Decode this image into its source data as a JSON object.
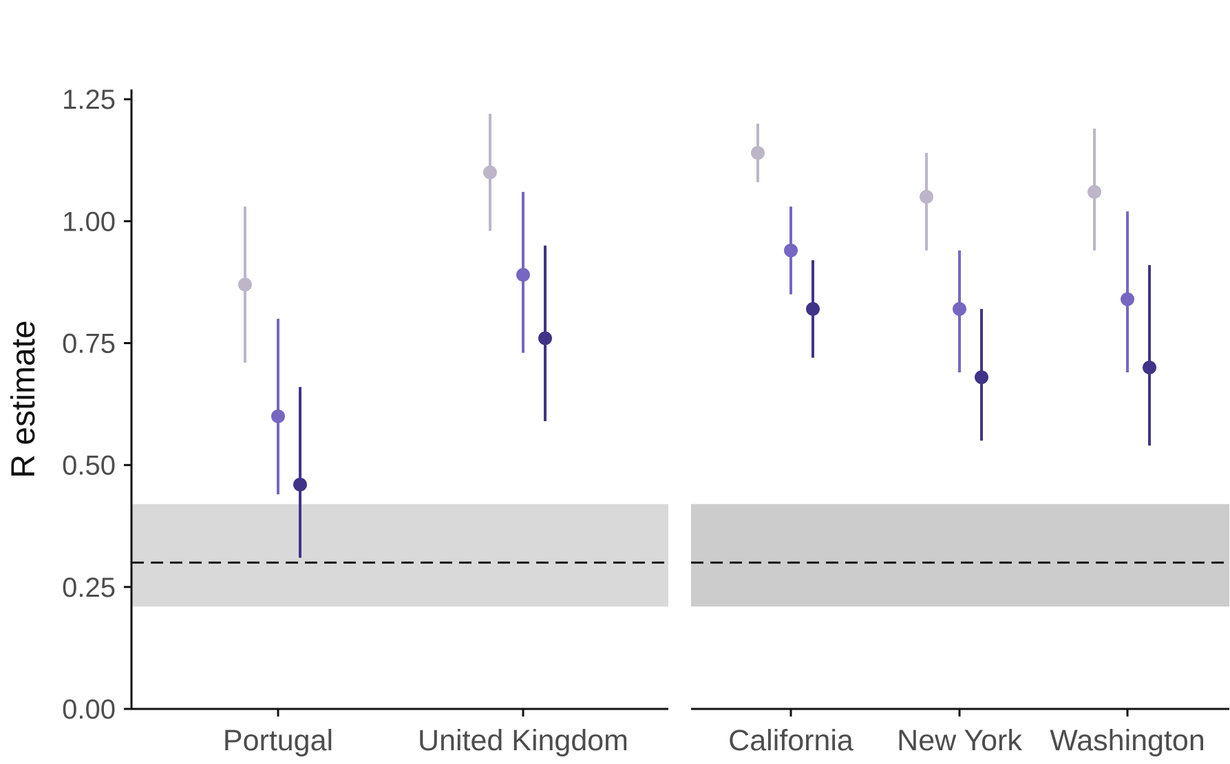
{
  "chart_data": {
    "type": "scatter",
    "ylabel": "R estimate",
    "ylim": [
      0,
      1.27
    ],
    "yticks": [
      "0.00",
      "0.25",
      "0.50",
      "0.75",
      "1.00",
      "1.25"
    ],
    "grid": false,
    "reference": {
      "value": 0.3,
      "band": [
        0.21,
        0.42
      ],
      "style": "dashed"
    },
    "series_colors": [
      "#bdb5c8",
      "#7766c2",
      "#3f3487"
    ],
    "panels": [
      {
        "band_color": "#d9d9d9",
        "categories": [
          {
            "label": "Portugal",
            "points": [
              {
                "y": 0.87,
                "lo": 0.71,
                "hi": 1.03
              },
              {
                "y": 0.6,
                "lo": 0.44,
                "hi": 0.8
              },
              {
                "y": 0.46,
                "lo": 0.31,
                "hi": 0.66
              }
            ]
          },
          {
            "label": "United Kingdom",
            "points": [
              {
                "y": 1.1,
                "lo": 0.98,
                "hi": 1.22
              },
              {
                "y": 0.89,
                "lo": 0.73,
                "hi": 1.06
              },
              {
                "y": 0.76,
                "lo": 0.59,
                "hi": 0.95
              }
            ]
          }
        ]
      },
      {
        "band_color": "#cccccc",
        "categories": [
          {
            "label": "California",
            "points": [
              {
                "y": 1.14,
                "lo": 1.08,
                "hi": 1.2
              },
              {
                "y": 0.94,
                "lo": 0.85,
                "hi": 1.03
              },
              {
                "y": 0.82,
                "lo": 0.72,
                "hi": 0.92
              }
            ]
          },
          {
            "label": "New York",
            "points": [
              {
                "y": 1.05,
                "lo": 0.94,
                "hi": 1.14
              },
              {
                "y": 0.82,
                "lo": 0.69,
                "hi": 0.94
              },
              {
                "y": 0.68,
                "lo": 0.55,
                "hi": 0.82
              }
            ]
          },
          {
            "label": "Washington",
            "points": [
              {
                "y": 1.06,
                "lo": 0.94,
                "hi": 1.19
              },
              {
                "y": 0.84,
                "lo": 0.69,
                "hi": 1.02
              },
              {
                "y": 0.7,
                "lo": 0.54,
                "hi": 0.91
              }
            ]
          }
        ]
      }
    ]
  }
}
